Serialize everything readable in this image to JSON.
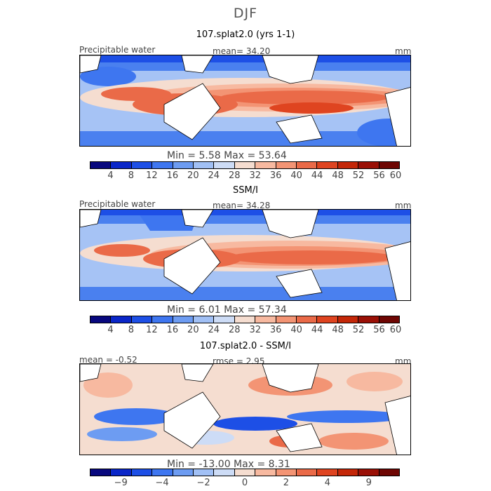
{
  "season": "DJF",
  "palette_abs": [
    "#08087e",
    "#0a26c8",
    "#1d4fe6",
    "#3e76f0",
    "#6d9cf2",
    "#a1c0f5",
    "#cddcf6",
    "#f5ddd0",
    "#f7b9a0",
    "#f39474",
    "#ea6a48",
    "#df4420",
    "#c42708",
    "#9a1006",
    "#6e0603"
  ],
  "palette_diff": [
    "#08087e",
    "#0a26c8",
    "#1d4fe6",
    "#3e76f0",
    "#6d9cf2",
    "#a1c0f5",
    "#cddcf6",
    "#f5ddd0",
    "#f7b9a0",
    "#f39474",
    "#ea6a48",
    "#df4420",
    "#c42708",
    "#9a1006",
    "#6e0603"
  ],
  "panels": [
    {
      "title": "107.splat2.0 (yrs 1-1)",
      "left_label": "Precipitable water",
      "center_label": "mean=  34.20",
      "right_label": "mm",
      "min_max": "Min =    5.58  Max =   53.64",
      "ticks": [
        "4",
        "8",
        "12",
        "16",
        "20",
        "24",
        "28",
        "32",
        "36",
        "40",
        "44",
        "48",
        "52",
        "56",
        "60"
      ]
    },
    {
      "title": "SSM/I",
      "left_label": "Precipitable water",
      "center_label": "mean=  34.28",
      "right_label": "mm",
      "min_max": "Min =    6.01  Max =   57.34",
      "ticks": [
        "4",
        "8",
        "12",
        "16",
        "20",
        "24",
        "28",
        "32",
        "36",
        "40",
        "44",
        "48",
        "52",
        "56",
        "60"
      ]
    },
    {
      "title": "107.splat2.0 - SSM/I",
      "left_label": "mean =   -0.52",
      "center_label": "rmse =    2.95",
      "right_label": "mm",
      "min_max": "Min =  -13.00  Max =    8.31",
      "ticks": [
        "−9",
        "−4",
        "−2",
        "0",
        "2",
        "4",
        "9"
      ]
    }
  ]
}
